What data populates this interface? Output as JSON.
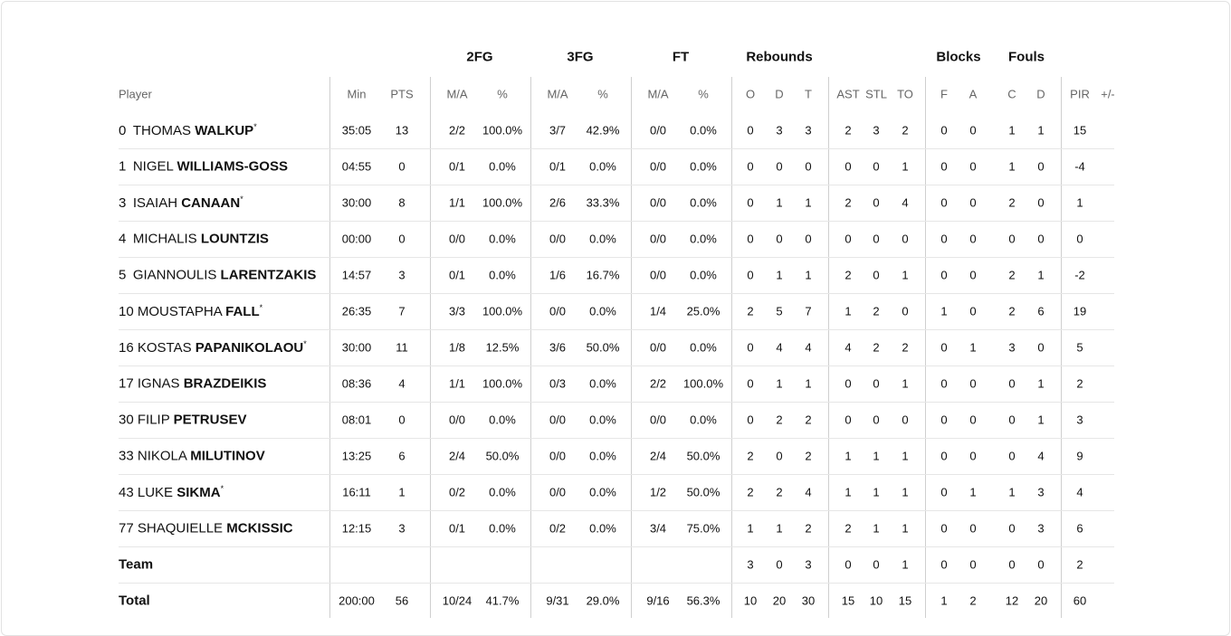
{
  "header": {
    "player": "Player",
    "groups": [
      {
        "label": null,
        "columns": [
          "Min",
          "PTS"
        ]
      },
      {
        "label": "2FG",
        "columns": [
          "M/A",
          "%"
        ]
      },
      {
        "label": "3FG",
        "columns": [
          "M/A",
          "%"
        ]
      },
      {
        "label": "FT",
        "columns": [
          "M/A",
          "%"
        ]
      },
      {
        "label": "Rebounds",
        "columns": [
          "O",
          "D",
          "T"
        ]
      },
      {
        "label": null,
        "columns": [
          "AST",
          "STL",
          "TO"
        ]
      },
      {
        "label": "Blocks",
        "columns": [
          "F",
          "A"
        ]
      },
      {
        "label": "Fouls",
        "columns": [
          "C",
          "D"
        ]
      },
      {
        "label": null,
        "columns": [
          "PIR",
          "+/-"
        ]
      }
    ]
  },
  "rows": [
    {
      "no": "0",
      "first": "THOMAS",
      "last": "WALKUP",
      "mark": "*",
      "stats": [
        "35:05",
        "13",
        "2/2",
        "100.0%",
        "3/7",
        "42.9%",
        "0/0",
        "0.0%",
        "0",
        "3",
        "3",
        "2",
        "3",
        "2",
        "0",
        "0",
        "1",
        "1",
        "15"
      ]
    },
    {
      "no": "1",
      "first": "NIGEL",
      "last": "WILLIAMS-GOSS",
      "stats": [
        "04:55",
        "0",
        "0/1",
        "0.0%",
        "0/1",
        "0.0%",
        "0/0",
        "0.0%",
        "0",
        "0",
        "0",
        "0",
        "0",
        "1",
        "0",
        "0",
        "1",
        "0",
        "-4"
      ]
    },
    {
      "no": "3",
      "first": "ISAIAH",
      "last": "CANAAN",
      "mark": "*",
      "stats": [
        "30:00",
        "8",
        "1/1",
        "100.0%",
        "2/6",
        "33.3%",
        "0/0",
        "0.0%",
        "0",
        "1",
        "1",
        "2",
        "0",
        "4",
        "0",
        "0",
        "2",
        "0",
        "1"
      ]
    },
    {
      "no": "4",
      "first": "MICHALIS",
      "last": "LOUNTZIS",
      "stats": [
        "00:00",
        "0",
        "0/0",
        "0.0%",
        "0/0",
        "0.0%",
        "0/0",
        "0.0%",
        "0",
        "0",
        "0",
        "0",
        "0",
        "0",
        "0",
        "0",
        "0",
        "0",
        "0"
      ]
    },
    {
      "no": "5",
      "first": "GIANNOULIS",
      "last": "LARENTZAKIS",
      "stats": [
        "14:57",
        "3",
        "0/1",
        "0.0%",
        "1/6",
        "16.7%",
        "0/0",
        "0.0%",
        "0",
        "1",
        "1",
        "2",
        "0",
        "1",
        "0",
        "0",
        "2",
        "1",
        "-2"
      ]
    },
    {
      "no": "10",
      "first": "MOUSTAPHA",
      "last": "FALL",
      "mark": "*",
      "stats": [
        "26:35",
        "7",
        "3/3",
        "100.0%",
        "0/0",
        "0.0%",
        "1/4",
        "25.0%",
        "2",
        "5",
        "7",
        "1",
        "2",
        "0",
        "1",
        "0",
        "2",
        "6",
        "19"
      ]
    },
    {
      "no": "16",
      "first": "KOSTAS",
      "last": "PAPANIKOLAOU",
      "mark": "*",
      "stats": [
        "30:00",
        "11",
        "1/8",
        "12.5%",
        "3/6",
        "50.0%",
        "0/0",
        "0.0%",
        "0",
        "4",
        "4",
        "4",
        "2",
        "2",
        "0",
        "1",
        "3",
        "0",
        "5"
      ]
    },
    {
      "no": "17",
      "first": "IGNAS",
      "last": "BRAZDEIKIS",
      "stats": [
        "08:36",
        "4",
        "1/1",
        "100.0%",
        "0/3",
        "0.0%",
        "2/2",
        "100.0%",
        "0",
        "1",
        "1",
        "0",
        "0",
        "1",
        "0",
        "0",
        "0",
        "1",
        "2"
      ]
    },
    {
      "no": "30",
      "first": "FILIP",
      "last": "PETRUSEV",
      "stats": [
        "08:01",
        "0",
        "0/0",
        "0.0%",
        "0/0",
        "0.0%",
        "0/0",
        "0.0%",
        "0",
        "2",
        "2",
        "0",
        "0",
        "0",
        "0",
        "0",
        "0",
        "1",
        "3"
      ]
    },
    {
      "no": "33",
      "first": "NIKOLA",
      "last": "MILUTINOV",
      "stats": [
        "13:25",
        "6",
        "2/4",
        "50.0%",
        "0/0",
        "0.0%",
        "2/4",
        "50.0%",
        "2",
        "0",
        "2",
        "1",
        "1",
        "1",
        "0",
        "0",
        "0",
        "4",
        "9"
      ]
    },
    {
      "no": "43",
      "first": "LUKE",
      "last": "SIKMA",
      "mark": "*",
      "stats": [
        "16:11",
        "1",
        "0/2",
        "0.0%",
        "0/0",
        "0.0%",
        "1/2",
        "50.0%",
        "2",
        "2",
        "4",
        "1",
        "1",
        "1",
        "0",
        "1",
        "1",
        "3",
        "4"
      ]
    },
    {
      "no": "77",
      "first": "SHAQUIELLE",
      "last": "MCKISSIC",
      "stats": [
        "12:15",
        "3",
        "0/1",
        "0.0%",
        "0/2",
        "0.0%",
        "3/4",
        "75.0%",
        "1",
        "1",
        "2",
        "2",
        "1",
        "1",
        "0",
        "0",
        "0",
        "3",
        "6"
      ]
    },
    {
      "label": "Team",
      "stats": [
        null,
        null,
        null,
        null,
        null,
        null,
        null,
        null,
        "3",
        "0",
        "3",
        "0",
        "0",
        "1",
        "0",
        "0",
        "0",
        "0",
        "2"
      ]
    },
    {
      "label": "Total",
      "stats": [
        "200:00",
        "56",
        "10/24",
        "41.7%",
        "9/31",
        "29.0%",
        "9/16",
        "56.3%",
        "10",
        "20",
        "30",
        "15",
        "10",
        "15",
        "1",
        "2",
        "12",
        "20",
        "60"
      ]
    }
  ]
}
